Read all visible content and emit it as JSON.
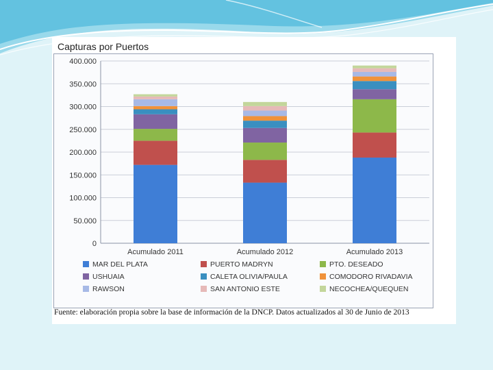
{
  "slide": {
    "source_note": "Fuente: elaboración propia sobre la base de información de la DNCP. Datos actualizados al 30 de Junio de 2013"
  },
  "chart_data": {
    "type": "bar",
    "stacked": true,
    "title": "Capturas por Puertos",
    "xlabel": "",
    "ylabel": "",
    "ylim": [
      0,
      400000
    ],
    "yticks": [
      0,
      50000,
      100000,
      150000,
      200000,
      250000,
      300000,
      350000,
      400000
    ],
    "ytick_labels": [
      "0",
      "50.000",
      "100.000",
      "150.000",
      "200.000",
      "250.000",
      "300.000",
      "350.000",
      "400.000"
    ],
    "grid": true,
    "legend_position": "bottom",
    "categories": [
      "Acumulado 2011",
      "Acumulado 2012",
      "Acumulado 2013"
    ],
    "series": [
      {
        "name": "MAR DEL PLATA",
        "color": "#3f7ed6",
        "values": [
          172000,
          133000,
          188000
        ]
      },
      {
        "name": "PUERTO MADRYN",
        "color": "#c0504d",
        "values": [
          53000,
          50000,
          55000
        ]
      },
      {
        "name": "PTO. DESEADO",
        "color": "#8db84a",
        "values": [
          26000,
          38000,
          73000
        ]
      },
      {
        "name": "USHUAIA",
        "color": "#8064a2",
        "values": [
          32000,
          32000,
          22000
        ]
      },
      {
        "name": "CALETA OLIVIA/PAULA",
        "color": "#3a8fc0",
        "values": [
          11000,
          16000,
          18000
        ]
      },
      {
        "name": "COMODORO RIVADAVIA",
        "color": "#f0923a",
        "values": [
          7000,
          10000,
          10000
        ]
      },
      {
        "name": "RAWSON",
        "color": "#a7b9e6",
        "values": [
          15000,
          12000,
          10000
        ]
      },
      {
        "name": "SAN ANTONIO ESTE",
        "color": "#e6b9b8",
        "values": [
          6000,
          10000,
          8000
        ]
      },
      {
        "name": "NECOCHEA/QUEQUEN",
        "color": "#c3d69b",
        "values": [
          5000,
          9000,
          6000
        ]
      }
    ]
  }
}
